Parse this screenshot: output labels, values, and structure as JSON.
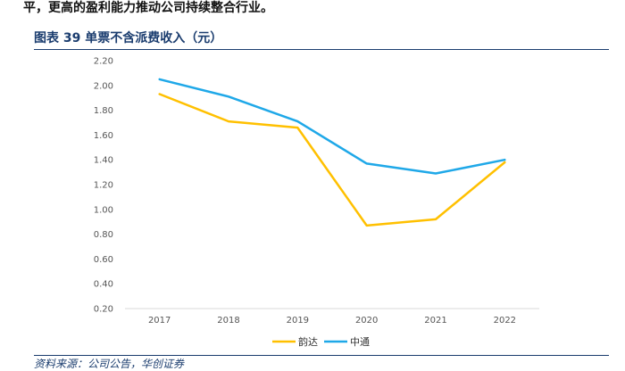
{
  "intro_text": "平，更高的盈利能力推动公司持续整合行业。",
  "figure_title": "图表 39 单票不含派费收入（元）",
  "source_text": "资料来源：公司公告，华创证券",
  "chart_data": {
    "type": "line",
    "title": "单票不含派费收入（元）",
    "xlabel": "",
    "ylabel": "",
    "categories": [
      "2017",
      "2018",
      "2019",
      "2020",
      "2021",
      "2022"
    ],
    "yticks": [
      "0.20",
      "0.40",
      "0.60",
      "0.80",
      "1.00",
      "1.20",
      "1.40",
      "1.60",
      "1.80",
      "2.00",
      "2.20"
    ],
    "ylim": [
      0.2,
      2.2
    ],
    "grid": false,
    "legend_position": "bottom-center",
    "series": [
      {
        "name": "韵达",
        "color": "#FFC000",
        "values": [
          1.93,
          1.71,
          1.66,
          0.87,
          0.92,
          1.38
        ]
      },
      {
        "name": "中通",
        "color": "#1FA8E8",
        "values": [
          2.05,
          1.91,
          1.71,
          1.37,
          1.29,
          1.4
        ]
      }
    ]
  }
}
